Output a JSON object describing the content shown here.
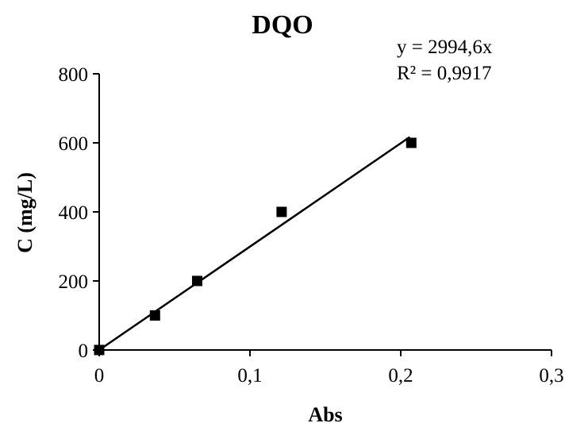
{
  "chart_data": {
    "type": "scatter",
    "title": "DQO",
    "xlabel": "Abs",
    "ylabel": "C (mg/L)",
    "xlim": [
      0,
      0.3
    ],
    "ylim": [
      0,
      800
    ],
    "x_ticks": [
      "0",
      "0,1",
      "0,2",
      "0,3"
    ],
    "y_ticks": [
      "0",
      "200",
      "400",
      "600",
      "800"
    ],
    "grid": false,
    "legend": "none",
    "series": [
      {
        "marker": "square",
        "points": [
          {
            "x": 0,
            "y": 0
          },
          {
            "x": 0.037,
            "y": 100
          },
          {
            "x": 0.065,
            "y": 200
          },
          {
            "x": 0.121,
            "y": 400
          },
          {
            "x": 0.207,
            "y": 600
          }
        ]
      }
    ],
    "trendline": {
      "type": "linear",
      "slope": 2994.6,
      "x_range": [
        0,
        0.206
      ],
      "equation": "y = 2994,6x",
      "r_squared": "R² = 0,9917"
    }
  }
}
